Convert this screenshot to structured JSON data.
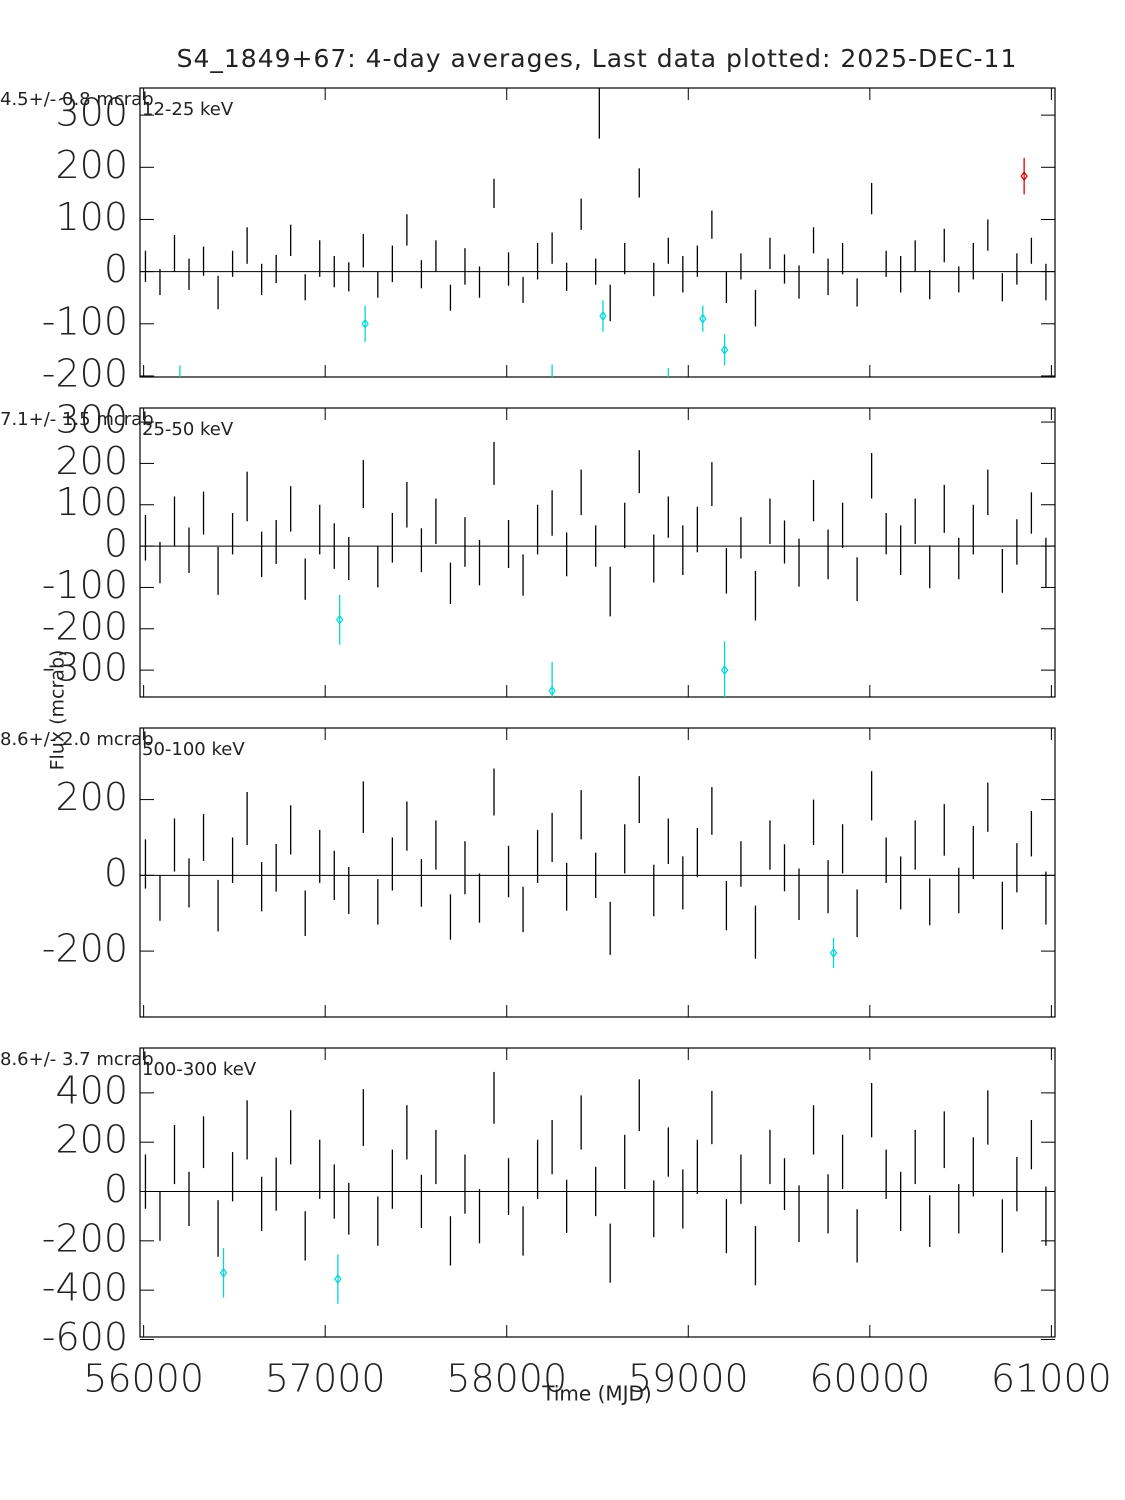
{
  "chart_data": [
    {
      "type": "errorbar",
      "title": "S4_1849+67:  4-day averages,  Last data plotted: 2025-DEC-11",
      "stats": "4.5+/-     0.8 mcrab",
      "band": "12-25 keV",
      "xlim": [
        55980,
        61020
      ],
      "xticks": [
        56000,
        57000,
        58000,
        59000,
        60000,
        61000
      ],
      "ylim": [
        -202,
        352
      ],
      "yticks": [
        -200,
        -100,
        0,
        100,
        200,
        300
      ],
      "series": [
        {
          "color": "#000000",
          "marker": "none",
          "x": [
            56010,
            56090,
            56170,
            56250,
            56330,
            56410,
            56490,
            56570,
            56650,
            56730,
            56810,
            56890,
            56970,
            57050,
            57130,
            57210,
            57290,
            57370,
            57450,
            57530,
            57610,
            57690,
            57770,
            57850,
            57930,
            58010,
            58090,
            58170,
            58250,
            58330,
            58410,
            58490,
            58570,
            58650,
            58730,
            58810,
            58890,
            58970,
            59050,
            59130,
            59210,
            59290,
            59370,
            59450,
            59530,
            59610,
            59690,
            59770,
            59850,
            59930,
            60010,
            60090,
            60170,
            60250,
            60330,
            60410,
            60490,
            60570,
            60650,
            60730,
            60810,
            60890,
            60970
          ],
          "values": [
            10,
            -20,
            35,
            -5,
            20,
            -40,
            15,
            50,
            -15,
            5,
            60,
            -30,
            25,
            0,
            -10,
            40,
            -25,
            15,
            80,
            -5,
            30,
            -50,
            10,
            -20,
            150,
            5,
            -35,
            20,
            45,
            -10,
            110,
            0,
            -60,
            25,
            170,
            -15,
            40,
            -5,
            20,
            90,
            -30,
            10,
            -70,
            35,
            5,
            -20,
            60,
            -10,
            25,
            -40,
            140,
            15,
            -5,
            30,
            -25,
            50,
            -15,
            20,
            70,
            -30,
            5,
            40,
            -20
          ],
          "errors": [
            30,
            25,
            35,
            30,
            28,
            32,
            25,
            35,
            30,
            27,
            30,
            25,
            35,
            30,
            28,
            32,
            25,
            35,
            30,
            27,
            30,
            25,
            35,
            30,
            28,
            32,
            25,
            35,
            30,
            27,
            30,
            25,
            35,
            30,
            28,
            32,
            25,
            35,
            30,
            27,
            30,
            25,
            35,
            30,
            28,
            32,
            25,
            35,
            30,
            27,
            30,
            25,
            35,
            30,
            28,
            32,
            25,
            35,
            30,
            27,
            30,
            25,
            35
          ]
        },
        {
          "color": "#000000",
          "marker": "none",
          "x": [
            58510
          ],
          "values": [
            310
          ],
          "errors": [
            55
          ]
        },
        {
          "color": "#00d8d8",
          "marker": "diamond",
          "x": [
            56200,
            57220,
            58250,
            58530,
            58890,
            59080,
            59200
          ],
          "values": [
            -205,
            -100,
            -208,
            -85,
            -220,
            -90,
            -150
          ],
          "errors": [
            25,
            35,
            30,
            30,
            35,
            25,
            30
          ]
        },
        {
          "color": "#e00000",
          "marker": "diamond",
          "x": [
            60850
          ],
          "values": [
            183
          ],
          "errors": [
            35
          ]
        }
      ]
    },
    {
      "type": "errorbar",
      "ylabel": "Flux (mcrab)",
      "stats": "7.1+/-     1.5 mcrab",
      "band": "25-50 keV",
      "xlim": [
        55980,
        61020
      ],
      "xticks": [
        56000,
        57000,
        58000,
        59000,
        60000,
        61000
      ],
      "ylim": [
        -365,
        334
      ],
      "yticks": [
        -300,
        -200,
        -100,
        0,
        100,
        200,
        300
      ],
      "series": [
        {
          "color": "#000000",
          "marker": "none",
          "x": [
            56010,
            56090,
            56170,
            56250,
            56330,
            56410,
            56490,
            56570,
            56650,
            56730,
            56810,
            56890,
            56970,
            57050,
            57130,
            57210,
            57290,
            57370,
            57450,
            57530,
            57610,
            57690,
            57770,
            57850,
            57930,
            58010,
            58090,
            58170,
            58250,
            58330,
            58410,
            58490,
            58570,
            58650,
            58730,
            58810,
            58890,
            58970,
            59050,
            59130,
            59210,
            59290,
            59370,
            59450,
            59530,
            59610,
            59690,
            59770,
            59850,
            59930,
            60010,
            60090,
            60170,
            60250,
            60330,
            60410,
            60490,
            60570,
            60650,
            60730,
            60810,
            60890,
            60970
          ],
          "values": [
            20,
            -40,
            60,
            -10,
            80,
            -60,
            30,
            120,
            -20,
            10,
            90,
            -80,
            40,
            0,
            -30,
            150,
            -50,
            20,
            100,
            -10,
            60,
            -90,
            10,
            -40,
            200,
            5,
            -70,
            40,
            80,
            -20,
            130,
            0,
            -110,
            50,
            180,
            -30,
            70,
            -10,
            40,
            150,
            -60,
            20,
            -120,
            60,
            10,
            -40,
            110,
            -20,
            50,
            -80,
            170,
            30,
            -10,
            60,
            -50,
            90,
            -30,
            40,
            130,
            -60,
            10,
            80,
            -40
          ],
          "errors": [
            55,
            50,
            60,
            55,
            52,
            58,
            50,
            60,
            55,
            53,
            55,
            50,
            60,
            55,
            52,
            58,
            50,
            60,
            55,
            53,
            55,
            50,
            60,
            55,
            52,
            58,
            50,
            60,
            55,
            53,
            55,
            50,
            60,
            55,
            52,
            58,
            50,
            60,
            55,
            53,
            55,
            50,
            60,
            55,
            52,
            58,
            50,
            60,
            55,
            53,
            55,
            50,
            60,
            55,
            52,
            58,
            50,
            60,
            55,
            53,
            55,
            50,
            60
          ]
        },
        {
          "color": "#00d8d8",
          "marker": "diamond",
          "x": [
            57080,
            58250,
            59200
          ],
          "values": [
            -178,
            -350,
            -300
          ],
          "errors": [
            60,
            70,
            70
          ]
        }
      ]
    },
    {
      "type": "errorbar",
      "stats": "8.6+/-     2.0 mcrab",
      "band": "50-100 keV",
      "xlim": [
        55980,
        61020
      ],
      "xticks": [
        56000,
        57000,
        58000,
        59000,
        60000,
        61000
      ],
      "ylim": [
        -374,
        389
      ],
      "yticks": [
        -200,
        0,
        200
      ],
      "series": [
        {
          "color": "#000000",
          "marker": "none",
          "x": [
            56010,
            56090,
            56170,
            56250,
            56330,
            56410,
            56490,
            56570,
            56650,
            56730,
            56810,
            56890,
            56970,
            57050,
            57130,
            57210,
            57290,
            57370,
            57450,
            57530,
            57610,
            57690,
            57770,
            57850,
            57930,
            58010,
            58090,
            58170,
            58250,
            58330,
            58410,
            58490,
            58570,
            58650,
            58730,
            58810,
            58890,
            58970,
            59050,
            59130,
            59210,
            59290,
            59370,
            59450,
            59530,
            59610,
            59690,
            59770,
            59850,
            59930,
            60010,
            60090,
            60170,
            60250,
            60330,
            60410,
            60490,
            60570,
            60650,
            60730,
            60810,
            60890,
            60970
          ],
          "values": [
            30,
            -60,
            80,
            -20,
            100,
            -80,
            40,
            150,
            -30,
            20,
            120,
            -100,
            50,
            0,
            -40,
            180,
            -70,
            30,
            130,
            -20,
            80,
            -110,
            20,
            -60,
            220,
            10,
            -90,
            50,
            100,
            -30,
            160,
            0,
            -140,
            70,
            200,
            -40,
            90,
            -20,
            60,
            170,
            -80,
            30,
            -150,
            80,
            20,
            -50,
            140,
            -30,
            70,
            -100,
            210,
            40,
            -20,
            80,
            -70,
            120,
            -40,
            60,
            180,
            -80,
            20,
            110,
            -60
          ],
          "errors": [
            65,
            60,
            70,
            65,
            62,
            68,
            60,
            70,
            65,
            63,
            65,
            60,
            70,
            65,
            62,
            68,
            60,
            70,
            65,
            63,
            65,
            60,
            70,
            65,
            62,
            68,
            60,
            70,
            65,
            63,
            65,
            60,
            70,
            65,
            62,
            68,
            60,
            70,
            65,
            63,
            65,
            60,
            70,
            65,
            62,
            68,
            60,
            70,
            65,
            63,
            65,
            60,
            70,
            65,
            62,
            68,
            60,
            70,
            65,
            63,
            65,
            60,
            70
          ]
        },
        {
          "color": "#00d8d8",
          "marker": "diamond",
          "x": [
            59800
          ],
          "values": [
            -205
          ],
          "errors": [
            40
          ]
        }
      ]
    },
    {
      "type": "errorbar",
      "xlabel": "Time (MJD)",
      "stats": "8.6+/-     3.7 mcrab",
      "band": "100-300 keV",
      "xlim": [
        55980,
        61020
      ],
      "xticks": [
        56000,
        57000,
        58000,
        59000,
        60000,
        61000
      ],
      "ylim": [
        -590,
        582
      ],
      "yticks": [
        -600,
        -400,
        -200,
        0,
        200,
        400
      ],
      "series": [
        {
          "color": "#000000",
          "marker": "none",
          "x": [
            56010,
            56090,
            56170,
            56250,
            56330,
            56410,
            56490,
            56570,
            56650,
            56730,
            56810,
            56890,
            56970,
            57050,
            57130,
            57210,
            57290,
            57370,
            57450,
            57530,
            57610,
            57690,
            57770,
            57850,
            57930,
            58010,
            58090,
            58170,
            58250,
            58330,
            58410,
            58490,
            58570,
            58650,
            58730,
            58810,
            58890,
            58970,
            59050,
            59130,
            59210,
            59290,
            59370,
            59450,
            59530,
            59610,
            59690,
            59770,
            59850,
            59930,
            60010,
            60090,
            60170,
            60250,
            60330,
            60410,
            60490,
            60570,
            60650,
            60730,
            60810,
            60890,
            60970
          ],
          "values": [
            40,
            -100,
            150,
            -30,
            200,
            -150,
            60,
            250,
            -50,
            30,
            220,
            -180,
            90,
            0,
            -70,
            300,
            -120,
            50,
            240,
            -40,
            140,
            -200,
            30,
            -100,
            380,
            20,
            -160,
            90,
            180,
            -60,
            280,
            0,
            -250,
            120,
            350,
            -70,
            160,
            -30,
            100,
            300,
            -140,
            50,
            -260,
            140,
            30,
            -90,
            250,
            -50,
            120,
            -180,
            330,
            70,
            -40,
            140,
            -120,
            210,
            -70,
            100,
            300,
            -140,
            30,
            190,
            -100
          ],
          "errors": [
            110,
            100,
            120,
            110,
            105,
            115,
            100,
            120,
            110,
            108,
            110,
            100,
            120,
            110,
            105,
            115,
            100,
            120,
            110,
            108,
            110,
            100,
            120,
            110,
            105,
            115,
            100,
            120,
            110,
            108,
            110,
            100,
            120,
            110,
            105,
            115,
            100,
            120,
            110,
            108,
            110,
            100,
            120,
            110,
            105,
            115,
            100,
            120,
            110,
            108,
            110,
            100,
            120,
            110,
            105,
            115,
            100,
            120,
            110,
            108,
            110,
            100,
            120
          ]
        },
        {
          "color": "#00d8d8",
          "marker": "diamond",
          "x": [
            56440,
            57070
          ],
          "values": [
            -330,
            -355
          ],
          "errors": [
            100,
            100
          ]
        }
      ]
    }
  ]
}
